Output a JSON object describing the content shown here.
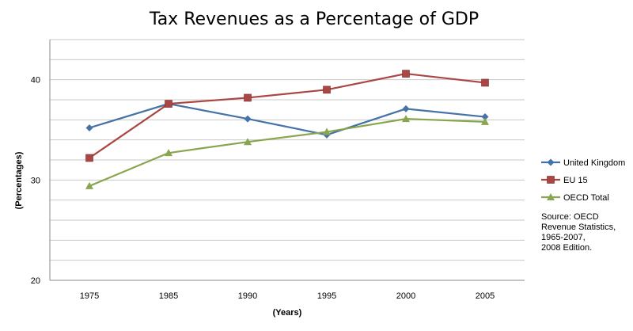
{
  "chart_data": {
    "type": "line",
    "title": "Tax Revenues as a Percentage of GDP",
    "xlabel": "(Years)",
    "ylabel": "(Percentages)",
    "categories": [
      "1975",
      "1985",
      "1990",
      "1995",
      "2000",
      "2005"
    ],
    "ylim": [
      20,
      44
    ],
    "yticks": [
      20,
      30,
      40
    ],
    "grid": true,
    "legend_position": "right",
    "series": [
      {
        "name": "United Kingdom",
        "color": "#4572A7",
        "marker": "diamond",
        "values": [
          35.2,
          37.6,
          36.1,
          34.5,
          37.1,
          36.3
        ]
      },
      {
        "name": "EU 15",
        "color": "#AA4643",
        "marker": "square",
        "values": [
          32.2,
          37.6,
          38.2,
          39.0,
          40.6,
          39.7
        ]
      },
      {
        "name": "OECD Total",
        "color": "#89A54E",
        "marker": "triangle",
        "values": [
          29.4,
          32.7,
          33.8,
          34.8,
          36.1,
          35.8
        ]
      }
    ],
    "annotation": "Source: OECD\nRevenue Statistics,\n1965-2007,\n2008 Edition."
  }
}
